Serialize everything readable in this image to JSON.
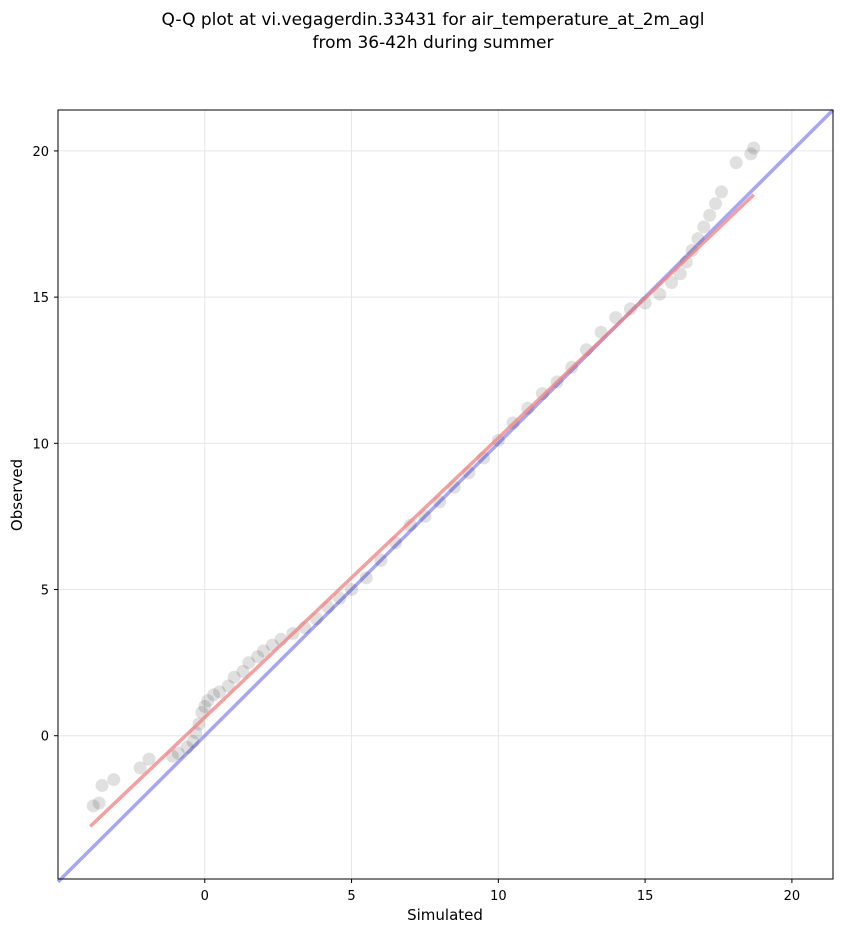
{
  "chart_data": {
    "type": "scatter",
    "title": [
      "Q-Q plot at vi.vegagerdin.33431 for air_temperature_at_2m_agl",
      "from 36-42h during summer"
    ],
    "xlabel": "Simulated",
    "ylabel": "Observed",
    "xlim": [
      -5,
      21.4
    ],
    "ylim": [
      -4.9,
      21.4
    ],
    "xticks": [
      0,
      5,
      10,
      15,
      20
    ],
    "yticks": [
      0,
      5,
      10,
      15,
      20
    ],
    "xtick_labels": [
      "0",
      "5",
      "10",
      "15",
      "20"
    ],
    "ytick_labels": [
      "0",
      "5",
      "10",
      "15",
      "20"
    ],
    "grid": true,
    "colors": {
      "points": "#000000",
      "fit_line": "#f08080",
      "identity_line": "#6b6bf0"
    },
    "series": [
      {
        "type": "scatter",
        "x": [
          -3.8,
          -3.6,
          -3.5,
          -3.1,
          -2.2,
          -1.9,
          -1.1,
          -0.9,
          -0.6,
          -0.4,
          -0.3,
          -0.2,
          -0.1,
          0.0,
          0.1,
          0.3,
          0.5,
          0.8,
          1.0,
          1.3,
          1.5,
          1.8,
          2.0,
          2.3,
          2.6,
          3.0,
          3.4,
          3.8,
          4.2,
          4.6,
          5.0,
          5.5,
          6.0,
          6.5,
          7.0,
          7.5,
          8.0,
          8.5,
          9.0,
          9.5,
          10.0,
          10.5,
          11.0,
          11.5,
          12.0,
          12.5,
          13.0,
          13.5,
          14.0,
          14.5,
          15.0,
          15.5,
          15.9,
          16.2,
          16.4,
          16.6,
          16.8,
          17.0,
          17.2,
          17.4,
          17.6,
          18.1,
          18.6,
          18.7
        ],
        "y": [
          -2.4,
          -2.3,
          -1.7,
          -1.5,
          -1.1,
          -0.8,
          -0.7,
          -0.6,
          -0.4,
          -0.2,
          0.1,
          0.4,
          0.8,
          1.0,
          1.2,
          1.4,
          1.5,
          1.7,
          2.0,
          2.2,
          2.5,
          2.7,
          2.9,
          3.1,
          3.3,
          3.5,
          3.7,
          4.0,
          4.4,
          4.7,
          5.0,
          5.4,
          6.0,
          6.6,
          7.2,
          7.5,
          8.0,
          8.5,
          9.0,
          9.5,
          10.1,
          10.7,
          11.2,
          11.7,
          12.1,
          12.6,
          13.2,
          13.8,
          14.3,
          14.6,
          14.8,
          15.1,
          15.5,
          15.8,
          16.2,
          16.6,
          17.0,
          17.4,
          17.8,
          18.2,
          18.6,
          19.6,
          19.9,
          20.1
        ]
      },
      {
        "type": "line",
        "x": [
          -3.9,
          18.7
        ],
        "y": [
          -3.1,
          18.5
        ]
      },
      {
        "type": "line",
        "x": [
          -5,
          21.4
        ],
        "y": [
          -5,
          21.4
        ]
      }
    ]
  }
}
